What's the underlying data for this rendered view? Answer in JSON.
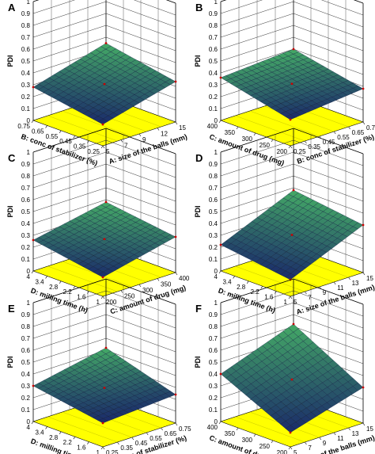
{
  "figure": {
    "z_label": "PDI",
    "z_ticks": [
      "0",
      "0.1",
      "0.2",
      "0.3",
      "0.4",
      "0.5",
      "0.6",
      "0.7",
      "0.8",
      "0.9",
      "1"
    ],
    "colors": {
      "floor": "#ffff00",
      "surface_low": "#1a2a6a",
      "surface_high": "#44aa66",
      "frame": "#000000",
      "grid": "#333333",
      "point": "#cc0000"
    }
  },
  "chart_data": [
    {
      "panel": "A",
      "type": "surface",
      "x_label": "A: size of the balls (mm)",
      "y_label": "B: conc of stabilizer (%)",
      "x_ticks": [
        "5",
        "7",
        "9",
        "12",
        "15"
      ],
      "y_ticks": [
        "0.25",
        "0.35",
        "0.45",
        "0.55",
        "0.65",
        "0.75"
      ],
      "z_range": [
        0,
        1
      ],
      "corners": {
        "front": 0.18,
        "left": 0.28,
        "right": 0.34,
        "back": 0.45
      }
    },
    {
      "panel": "B",
      "type": "surface",
      "x_label": "B: conc of stabilizer (%)",
      "y_label": "C: amount of drug (mg)",
      "x_ticks": [
        "0.25",
        "0.35",
        "0.45",
        "0.55",
        "0.65",
        "0.75"
      ],
      "y_ticks": [
        "200",
        "250",
        "300",
        "350",
        "400"
      ],
      "z_range": [
        0,
        1
      ],
      "corners": {
        "front": 0.22,
        "left": 0.36,
        "right": 0.28,
        "back": 0.4
      }
    },
    {
      "panel": "C",
      "type": "surface",
      "x_label": "C: amount of drug (mg)",
      "y_label": "D: milling time (h)",
      "x_ticks": [
        "200",
        "250",
        "300",
        "350",
        "400"
      ],
      "y_ticks": [
        "1",
        "1.6",
        "2.2",
        "2.8",
        "3.4",
        "4"
      ],
      "z_range": [
        0,
        1
      ],
      "corners": {
        "front": 0.16,
        "left": 0.26,
        "right": 0.3,
        "back": 0.38
      }
    },
    {
      "panel": "D",
      "type": "surface",
      "x_label": "A: size of the balls (mm)",
      "y_label": "D: milling time (h)",
      "x_ticks": [
        "5",
        "7",
        "9",
        "11",
        "13",
        "15"
      ],
      "y_ticks": [
        "1",
        "1.6",
        "2.2",
        "2.8",
        "3.4",
        "4"
      ],
      "z_range": [
        0,
        1
      ],
      "corners": {
        "front": 0.14,
        "left": 0.22,
        "right": 0.4,
        "back": 0.48
      }
    },
    {
      "panel": "E",
      "type": "surface",
      "x_label": "B: conc of stabilizer (%)",
      "y_label": "D: milling time (h)",
      "x_ticks": [
        "0.25",
        "0.35",
        "0.45",
        "0.55",
        "0.65",
        "0.75"
      ],
      "y_ticks": [
        "1",
        "1.6",
        "2.2",
        "2.8",
        "3.4",
        "4"
      ],
      "z_range": [
        0,
        1
      ],
      "corners": {
        "front": 0.2,
        "left": 0.3,
        "right": 0.24,
        "back": 0.42
      }
    },
    {
      "panel": "F",
      "type": "surface",
      "x_label": "A: size of the balls (mm)",
      "y_label": "C: amount of drug (mg)",
      "x_ticks": [
        "5",
        "7",
        "9",
        "11",
        "13",
        "15"
      ],
      "y_ticks": [
        "200",
        "250",
        "300",
        "350",
        "400"
      ],
      "z_range": [
        0,
        1
      ],
      "corners": {
        "front": 0.12,
        "left": 0.4,
        "right": 0.3,
        "back": 0.62
      }
    }
  ]
}
